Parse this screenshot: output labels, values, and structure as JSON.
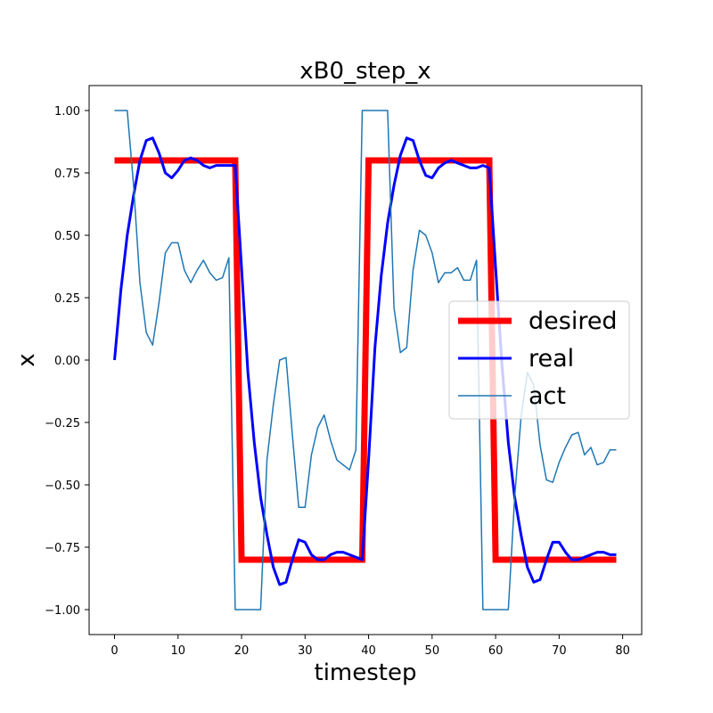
{
  "chart_data": {
    "type": "line",
    "title": "xB0_step_x",
    "xlabel": "timestep",
    "ylabel": "x",
    "xlim": [
      -4,
      83
    ],
    "ylim": [
      -1.1,
      1.1
    ],
    "xticks": [
      0,
      10,
      20,
      30,
      40,
      50,
      60,
      70,
      80
    ],
    "yticks": [
      -1.0,
      -0.75,
      -0.5,
      -0.25,
      0.0,
      0.25,
      0.5,
      0.75,
      1.0
    ],
    "xtick_labels": [
      "0",
      "10",
      "20",
      "30",
      "40",
      "50",
      "60",
      "70",
      "80"
    ],
    "ytick_labels": [
      "−1.00",
      "−0.75",
      "−0.50",
      "−0.25",
      "0.00",
      "0.25",
      "0.50",
      "0.75",
      "1.00"
    ],
    "grid": false,
    "legend_position": "center-right",
    "series": [
      {
        "name": "desired",
        "color": "#ff0000",
        "x": [
          0,
          19,
          20,
          39,
          40,
          59,
          60,
          79
        ],
        "y": [
          0.8,
          0.8,
          -0.8,
          -0.8,
          0.8,
          0.8,
          -0.8,
          -0.8
        ]
      },
      {
        "name": "real",
        "color": "#0000ff",
        "x": [
          0,
          1,
          2,
          3,
          4,
          5,
          6,
          7,
          8,
          9,
          10,
          11,
          12,
          13,
          14,
          15,
          16,
          17,
          18,
          19,
          20,
          21,
          22,
          23,
          24,
          25,
          26,
          27,
          28,
          29,
          30,
          31,
          32,
          33,
          34,
          35,
          36,
          37,
          38,
          39,
          40,
          41,
          42,
          43,
          44,
          45,
          46,
          47,
          48,
          49,
          50,
          51,
          52,
          53,
          54,
          55,
          56,
          57,
          58,
          59,
          60,
          61,
          62,
          63,
          64,
          65,
          66,
          67,
          68,
          69,
          70,
          71,
          72,
          73,
          74,
          75,
          76,
          77,
          78,
          79
        ],
        "y": [
          0.0,
          0.28,
          0.5,
          0.66,
          0.8,
          0.88,
          0.89,
          0.83,
          0.75,
          0.73,
          0.76,
          0.8,
          0.81,
          0.8,
          0.78,
          0.77,
          0.78,
          0.78,
          0.78,
          0.78,
          0.37,
          -0.05,
          -0.33,
          -0.55,
          -0.7,
          -0.83,
          -0.9,
          -0.89,
          -0.8,
          -0.72,
          -0.73,
          -0.78,
          -0.8,
          -0.8,
          -0.78,
          -0.77,
          -0.77,
          -0.78,
          -0.79,
          -0.8,
          -0.4,
          0.05,
          0.34,
          0.55,
          0.7,
          0.82,
          0.89,
          0.88,
          0.8,
          0.74,
          0.73,
          0.77,
          0.79,
          0.8,
          0.79,
          0.78,
          0.77,
          0.77,
          0.78,
          0.77,
          0.37,
          -0.02,
          -0.33,
          -0.55,
          -0.7,
          -0.83,
          -0.89,
          -0.88,
          -0.8,
          -0.73,
          -0.73,
          -0.77,
          -0.8,
          -0.8,
          -0.79,
          -0.78,
          -0.77,
          -0.77,
          -0.78,
          -0.78
        ]
      },
      {
        "name": "act",
        "color": "#1f77b4",
        "x": [
          0,
          1,
          2,
          3,
          4,
          5,
          6,
          7,
          8,
          9,
          10,
          11,
          12,
          13,
          14,
          15,
          16,
          17,
          18,
          19,
          20,
          21,
          22,
          23,
          24,
          25,
          26,
          27,
          28,
          29,
          30,
          31,
          32,
          33,
          34,
          35,
          36,
          37,
          38,
          39,
          40,
          41,
          42,
          43,
          44,
          45,
          46,
          47,
          48,
          49,
          50,
          51,
          52,
          53,
          54,
          55,
          56,
          57,
          58,
          59,
          60,
          61,
          62,
          63,
          64,
          65,
          66,
          67,
          68,
          69,
          70,
          71,
          72,
          73,
          74,
          75,
          76,
          77,
          78,
          79
        ],
        "y": [
          1.0,
          1.0,
          1.0,
          0.7,
          0.31,
          0.11,
          0.06,
          0.23,
          0.43,
          0.47,
          0.47,
          0.36,
          0.31,
          0.36,
          0.4,
          0.35,
          0.32,
          0.33,
          0.41,
          -1.0,
          -1.0,
          -1.0,
          -1.0,
          -1.0,
          -0.4,
          -0.18,
          0.0,
          0.01,
          -0.3,
          -0.59,
          -0.59,
          -0.38,
          -0.27,
          -0.22,
          -0.32,
          -0.4,
          -0.42,
          -0.44,
          -0.36,
          1.0,
          1.0,
          1.0,
          1.0,
          1.0,
          0.21,
          0.03,
          0.05,
          0.36,
          0.52,
          0.5,
          0.43,
          0.31,
          0.35,
          0.35,
          0.37,
          0.32,
          0.32,
          0.4,
          -1.0,
          -1.0,
          -1.0,
          -1.0,
          -1.0,
          -0.55,
          -0.23,
          -0.05,
          -0.1,
          -0.34,
          -0.48,
          -0.49,
          -0.41,
          -0.35,
          -0.3,
          -0.29,
          -0.38,
          -0.35,
          -0.42,
          -0.41,
          -0.36,
          -0.36
        ]
      }
    ]
  }
}
